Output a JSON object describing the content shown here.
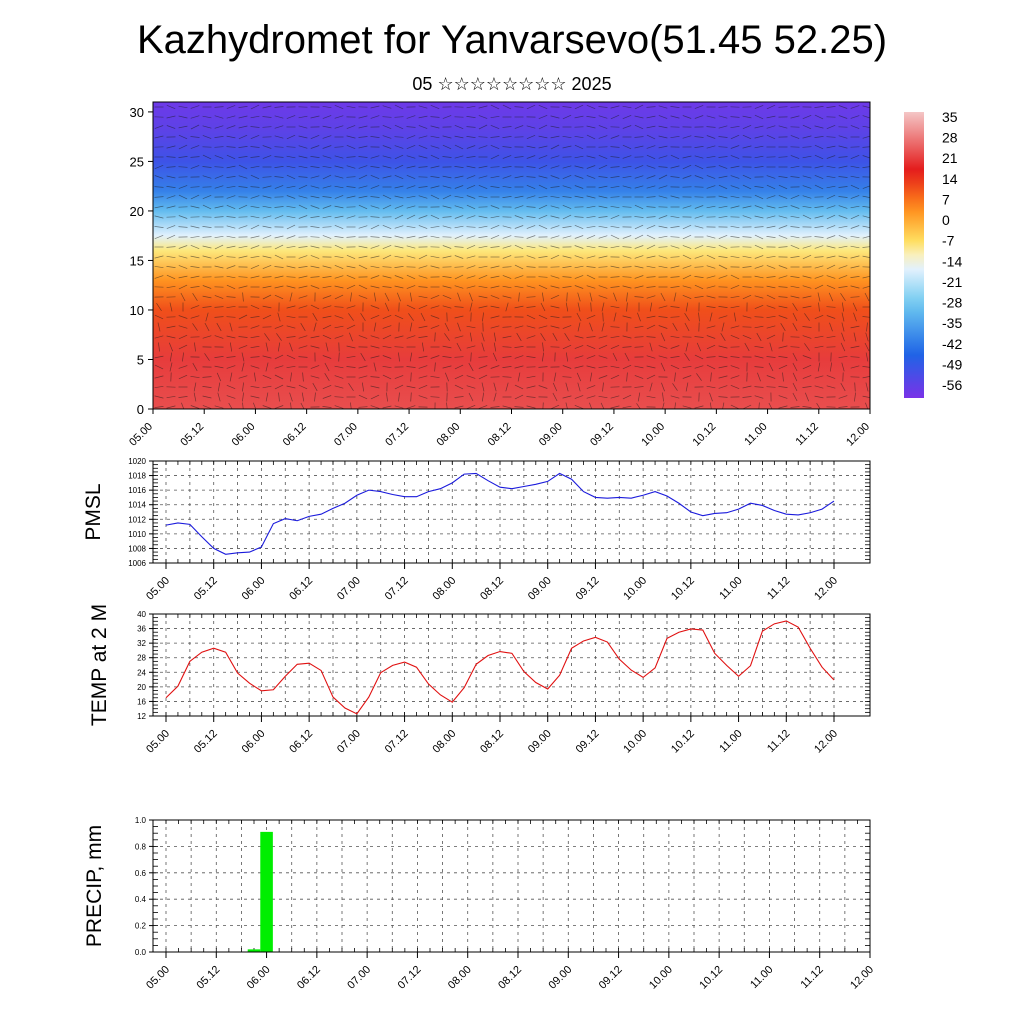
{
  "title": "Kazhydromet for Yanvarsevo(51.45 52.25)",
  "subtitle": {
    "day": "05",
    "month_glyphs": "☆☆☆☆☆☆☆☆",
    "year": "2025"
  },
  "chart_data": [
    {
      "id": "cross-section",
      "type": "heatmap",
      "description_of_field": "temperature vs height with wind barbs",
      "xlabel": "",
      "ylabel": "",
      "x_tick_labels": [
        "05.00",
        "05.12",
        "06.00",
        "06.12",
        "07.00",
        "07.12",
        "08.00",
        "08.12",
        "09.00",
        "09.12",
        "10.00",
        "10.12",
        "11.00",
        "11.12",
        "12.00"
      ],
      "y_ticks": [
        0,
        5,
        10,
        15,
        20,
        25,
        30
      ],
      "ylim": [
        0,
        31
      ],
      "colorbar_labels": [
        "35",
        "28",
        "21",
        "14",
        "7",
        "0",
        "-7",
        "-14",
        "-21",
        "-28",
        "-35",
        "-42",
        "-49",
        "-56"
      ],
      "colorbar_range": [
        -60,
        38
      ],
      "colors": {
        "warm_high": "#f4c6c6",
        "warm": "#e41a1a",
        "orange": "#ff8c1a",
        "yellow": "#ffe566",
        "pale": "#f4f8ff",
        "light_blue": "#6cc8f0",
        "blue": "#1e64e6",
        "purple": "#7a32e8"
      },
      "temperature_profile": {
        "heights": [
          0,
          5,
          10,
          13,
          16,
          17.5,
          20,
          22,
          25,
          28,
          31
        ],
        "values": [
          24,
          22,
          12,
          4,
          -8,
          -16,
          -30,
          -40,
          -50,
          -55,
          -58
        ]
      }
    },
    {
      "id": "pmsl",
      "type": "line",
      "ylabel": "PMSL",
      "xlabel": "",
      "x_tick_labels": [
        "05.00",
        "05.12",
        "06.00",
        "06.12",
        "07.00",
        "07.12",
        "08.00",
        "08.12",
        "09.00",
        "09.12",
        "10.00",
        "10.12",
        "11.00",
        "11.12",
        "12.00"
      ],
      "y_tick_labels": [
        "1006",
        "1008",
        "1010",
        "1012",
        "1014",
        "1016",
        "1018",
        "1020"
      ],
      "ylim": [
        1006,
        1020
      ],
      "grid": true,
      "series": [
        {
          "color": "#1a1adc",
          "x": [
            "05.00",
            "05.03",
            "05.06",
            "05.09",
            "05.12",
            "05.15",
            "05.18",
            "05.21",
            "06.00",
            "06.03",
            "06.06",
            "06.09",
            "06.12",
            "06.15",
            "06.18",
            "06.21",
            "07.00",
            "07.03",
            "07.06",
            "07.09",
            "07.12",
            "07.15",
            "07.18",
            "07.21",
            "08.00",
            "08.03",
            "08.06",
            "08.09",
            "08.12",
            "08.15",
            "08.18",
            "08.21",
            "09.00",
            "09.03",
            "09.06",
            "09.09",
            "09.12",
            "09.15",
            "09.18",
            "09.21",
            "10.00",
            "10.03",
            "10.06",
            "10.09",
            "10.12",
            "10.15",
            "10.18",
            "10.21",
            "11.00",
            "11.03",
            "11.06",
            "11.09",
            "11.12",
            "11.15",
            "11.18",
            "11.21",
            "12.00"
          ],
          "values": [
            1011.2,
            1011.5,
            1011.3,
            1009.6,
            1008.0,
            1007.2,
            1007.4,
            1007.5,
            1008.2,
            1011.4,
            1012.1,
            1011.8,
            1012.4,
            1012.7,
            1013.5,
            1014.2,
            1015.3,
            1016.0,
            1015.8,
            1015.4,
            1015.1,
            1015.1,
            1015.8,
            1016.2,
            1017.0,
            1018.2,
            1018.3,
            1017.3,
            1016.4,
            1016.2,
            1016.5,
            1016.8,
            1017.2,
            1018.3,
            1017.5,
            1015.8,
            1015.0,
            1014.9,
            1015.0,
            1014.9,
            1015.3,
            1015.8,
            1015.2,
            1014.2,
            1013.0,
            1012.5,
            1012.8,
            1012.9,
            1013.4,
            1014.2,
            1013.9,
            1013.2,
            1012.7,
            1012.6,
            1012.9,
            1013.4,
            1014.5
          ]
        }
      ]
    },
    {
      "id": "temp2m",
      "type": "line",
      "ylabel": "TEMP at 2 M",
      "xlabel": "",
      "x_tick_labels": [
        "05.00",
        "05.12",
        "06.00",
        "06.12",
        "07.00",
        "07.12",
        "08.00",
        "08.12",
        "09.00",
        "09.12",
        "10.00",
        "10.12",
        "11.00",
        "11.12",
        "12.00"
      ],
      "y_tick_labels": [
        "12",
        "16",
        "20",
        "24",
        "28",
        "32",
        "36",
        "40"
      ],
      "ylim": [
        12,
        40
      ],
      "grid": true,
      "series": [
        {
          "color": "#e01010",
          "x": [
            "05.00",
            "05.03",
            "05.06",
            "05.09",
            "05.12",
            "05.15",
            "05.18",
            "05.21",
            "06.00",
            "06.03",
            "06.06",
            "06.09",
            "06.12",
            "06.15",
            "06.18",
            "06.21",
            "07.00",
            "07.03",
            "07.06",
            "07.09",
            "07.12",
            "07.15",
            "07.18",
            "07.21",
            "08.00",
            "08.03",
            "08.06",
            "08.09",
            "08.12",
            "08.15",
            "08.18",
            "08.21",
            "09.00",
            "09.03",
            "09.06",
            "09.09",
            "09.12",
            "09.15",
            "09.18",
            "09.21",
            "10.00",
            "10.03",
            "10.06",
            "10.09",
            "10.12",
            "10.15",
            "10.18",
            "10.21",
            "11.00",
            "11.03",
            "11.06",
            "11.09",
            "11.12",
            "11.15",
            "11.18",
            "11.21",
            "12.00"
          ],
          "values": [
            17.0,
            20.2,
            27.0,
            29.5,
            30.6,
            29.5,
            23.8,
            21.0,
            18.9,
            19.2,
            22.9,
            26.2,
            26.5,
            24.5,
            17.2,
            14.2,
            12.6,
            17.2,
            23.9,
            25.9,
            26.8,
            25.4,
            20.8,
            17.8,
            15.8,
            19.8,
            26.2,
            28.6,
            29.7,
            29.2,
            24.2,
            21.2,
            19.4,
            23.2,
            30.6,
            32.6,
            33.6,
            32.3,
            27.6,
            24.6,
            22.6,
            25.2,
            33.3,
            35.0,
            35.9,
            35.6,
            29.2,
            25.9,
            22.9,
            25.8,
            35.3,
            37.3,
            38.1,
            36.4,
            30.6,
            25.4,
            21.9
          ]
        }
      ]
    },
    {
      "id": "precip",
      "type": "bar",
      "ylabel": "PRECIP, mm",
      "xlabel": "",
      "x_tick_labels": [
        "05.00",
        "05.12",
        "06.00",
        "06.12",
        "07.00",
        "07.12",
        "08.00",
        "08.12",
        "09.00",
        "09.12",
        "10.00",
        "10.12",
        "11.00",
        "11.12",
        "12.00"
      ],
      "y_tick_labels": [
        "0.0",
        "0.2",
        "0.4",
        "0.6",
        "0.8",
        "1.0"
      ],
      "ylim": [
        0,
        1.0
      ],
      "grid": true,
      "series": [
        {
          "color": "#00ee00",
          "categories": [
            "05.21",
            "06.00"
          ],
          "values": [
            0.02,
            0.91
          ]
        }
      ]
    }
  ]
}
